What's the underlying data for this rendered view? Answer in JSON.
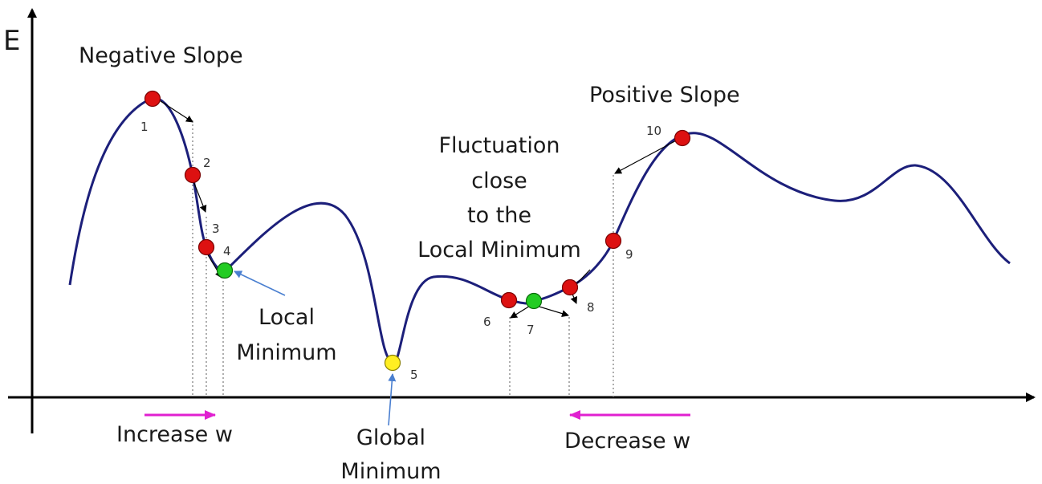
{
  "axis": {
    "y_label": "E"
  },
  "labels": {
    "negative_slope": "Negative Slope",
    "positive_slope": "Positive Slope",
    "fluctuation_lines": [
      "Fluctuation",
      "close",
      "to the",
      "Local Minimum"
    ],
    "local_minimum_lines": [
      "Local",
      "Minimum"
    ],
    "global_minimum_lines": [
      "Global",
      "Minimum"
    ],
    "increase_w": "Increase w",
    "decrease_w": "Decrease w"
  },
  "points": [
    {
      "label": "1",
      "color": "#dd1111"
    },
    {
      "label": "2",
      "color": "#dd1111"
    },
    {
      "label": "3",
      "color": "#dd1111"
    },
    {
      "label": "4",
      "color": "#22cc22"
    },
    {
      "label": "5",
      "color": "#ffee22"
    },
    {
      "label": "6",
      "color": "#dd1111"
    },
    {
      "label": "7",
      "color": "#22cc22"
    },
    {
      "label": "8",
      "color": "#dd1111"
    },
    {
      "label": "9",
      "color": "#dd1111"
    },
    {
      "label": "10",
      "color": "#dd1111"
    }
  ],
  "colors": {
    "curve": "#1c1f7a",
    "arrow_w": "#e020d0",
    "pointer": "#4a7fd0"
  }
}
